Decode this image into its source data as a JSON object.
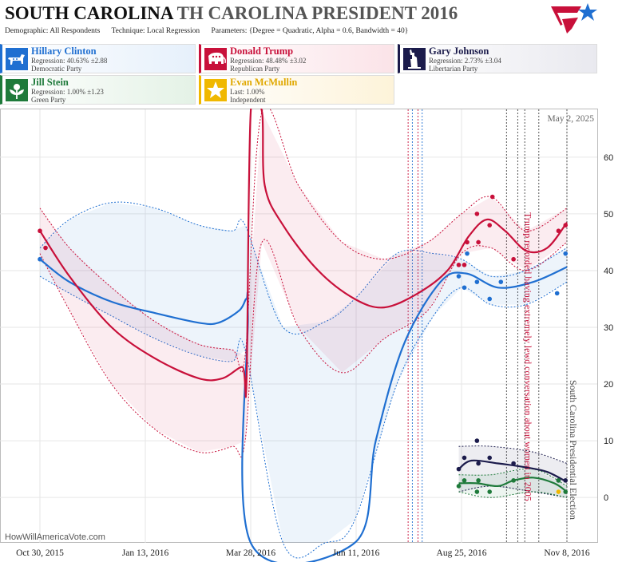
{
  "header": {
    "title_state": "SOUTH CAROLINA",
    "title_rest": "TH CAROLINA PRESIDENT 2016",
    "demographic": "Demographic: All Respondents",
    "technique": "Technique: Local Regression",
    "parameters": "Parameters: {Degree = Quadratic, Alpha = 0.6, Bandwidth = 40}"
  },
  "candidates": [
    {
      "key": "clinton",
      "name": "Hillary Clinton",
      "line2": "Regression: 40.63% ±2.88",
      "line3": "Democratic Party",
      "color": "#1f6fd1",
      "icon": "donkey-icon"
    },
    {
      "key": "trump",
      "name": "Donald Trump",
      "line2": "Regression: 48.48% ±3.02",
      "line3": "Republican Party",
      "color": "#c8103a",
      "icon": "elephant-icon"
    },
    {
      "key": "johnson",
      "name": "Gary Johnson",
      "line2": "Regression: 2.73% ±3.04",
      "line3": "Libertarian Party",
      "color": "#1b1b4b",
      "icon": "liberty-statue-icon"
    },
    {
      "key": "stein",
      "name": "Jill Stein",
      "line2": "Regression: 1.00% ±1.23",
      "line3": "Green Party",
      "color": "#1e7a3a",
      "icon": "leaf-flower-icon"
    },
    {
      "key": "mcmullin",
      "name": "Evan McMullin",
      "line2": "Last: 1.00%",
      "line3": "Independent",
      "color": "#f0b800",
      "icon": "star-icon"
    }
  ],
  "chart_data": {
    "type": "line",
    "date_label": "May 2, 2025",
    "watermark": "HowWillAmericaVote.com",
    "x_ticks": [
      {
        "date": "2015-10-30",
        "label": "Oct 30, 2015"
      },
      {
        "date": "2016-01-13",
        "label": "Jan 13, 2016"
      },
      {
        "date": "2016-03-28",
        "label": "Mar 28, 2016"
      },
      {
        "date": "2016-06-11",
        "label": "Jun 11, 2016"
      },
      {
        "date": "2016-08-25",
        "label": "Aug 25, 2016"
      },
      {
        "date": "2016-11-08",
        "label": "Nov 8, 2016"
      }
    ],
    "ylim": [
      -8,
      68
    ],
    "y_ticks": [
      0,
      10,
      20,
      30,
      40,
      50,
      60
    ],
    "grid": true,
    "annotations": [
      {
        "date": "2016-10-07",
        "text": "Trump recorded having extremely lewd conversation about women in 2005",
        "color": "#c8103a"
      },
      {
        "date": "2016-11-08",
        "text": "South Carolina Presidential Election",
        "color": "#444444"
      }
    ],
    "event_lines": [
      {
        "date": "2016-07-18",
        "color": "#c8103a"
      },
      {
        "date": "2016-07-21",
        "color": "#1f6fd1"
      },
      {
        "date": "2016-07-25",
        "color": "#c8103a"
      },
      {
        "date": "2016-07-28",
        "color": "#1f6fd1"
      },
      {
        "date": "2016-09-26",
        "color": "#444444"
      },
      {
        "date": "2016-10-04",
        "color": "#444444"
      },
      {
        "date": "2016-10-09",
        "color": "#444444"
      },
      {
        "date": "2016-10-19",
        "color": "#444444"
      },
      {
        "date": "2016-11-08",
        "color": "#444444"
      }
    ],
    "series": [
      {
        "name": "Hillary Clinton",
        "color": "#1f6fd1",
        "band": [
          {
            "x": "2015-10-30",
            "lo": 39,
            "hi": 44
          },
          {
            "x": "2015-11-20",
            "lo": 36,
            "hi": 49
          },
          {
            "x": "2015-12-20",
            "lo": 32,
            "hi": 52
          },
          {
            "x": "2016-01-20",
            "lo": 28,
            "hi": 51
          },
          {
            "x": "2016-02-20",
            "lo": 25,
            "hi": 48
          },
          {
            "x": "2016-03-15",
            "lo": 24,
            "hi": 47
          },
          {
            "x": "2016-03-24",
            "lo": 26,
            "hi": 48
          },
          {
            "x": "2016-04-20",
            "lo": -8,
            "hi": 30
          },
          {
            "x": "2016-05-20",
            "lo": -8,
            "hi": 31
          },
          {
            "x": "2016-06-10",
            "lo": -4,
            "hi": 35
          },
          {
            "x": "2016-07-10",
            "lo": 20,
            "hi": 43
          },
          {
            "x": "2016-08-05",
            "lo": 32,
            "hi": 43
          },
          {
            "x": "2016-08-25",
            "lo": 37,
            "hi": 42
          },
          {
            "x": "2016-09-15",
            "lo": 34,
            "hi": 39
          },
          {
            "x": "2016-10-10",
            "lo": 34,
            "hi": 40
          },
          {
            "x": "2016-11-08",
            "lo": 38,
            "hi": 44
          }
        ],
        "curve": [
          {
            "x": "2015-10-30",
            "y": 42
          },
          {
            "x": "2015-11-20",
            "y": 38
          },
          {
            "x": "2015-12-20",
            "y": 34.5
          },
          {
            "x": "2016-01-20",
            "y": 32.5
          },
          {
            "x": "2016-02-20",
            "y": 30.8
          },
          {
            "x": "2016-03-05",
            "y": 30.8
          },
          {
            "x": "2016-03-20",
            "y": 33
          },
          {
            "x": "2016-03-25",
            "y": 35
          },
          {
            "x": "2016-03-26",
            "y": 32
          },
          {
            "x": "2016-03-28",
            "y": -8
          },
          {
            "x": "2016-06-10",
            "y": -8
          },
          {
            "x": "2016-06-25",
            "y": 10
          },
          {
            "x": "2016-07-15",
            "y": 27
          },
          {
            "x": "2016-08-10",
            "y": 38
          },
          {
            "x": "2016-08-28",
            "y": 39.5
          },
          {
            "x": "2016-09-20",
            "y": 37
          },
          {
            "x": "2016-10-15",
            "y": 38
          },
          {
            "x": "2016-11-08",
            "y": 40.63
          }
        ],
        "points": [
          {
            "x": "2015-10-30",
            "y": 42
          },
          {
            "x": "2016-08-23",
            "y": 39
          },
          {
            "x": "2016-08-27",
            "y": 37
          },
          {
            "x": "2016-08-29",
            "y": 43
          },
          {
            "x": "2016-09-05",
            "y": 38
          },
          {
            "x": "2016-09-14",
            "y": 35
          },
          {
            "x": "2016-09-22",
            "y": 38
          },
          {
            "x": "2016-11-01",
            "y": 36
          },
          {
            "x": "2016-11-07",
            "y": 43
          }
        ]
      },
      {
        "name": "Donald Trump",
        "color": "#c8103a",
        "band": [
          {
            "x": "2015-10-30",
            "lo": 43,
            "hi": 51
          },
          {
            "x": "2015-11-20",
            "lo": 33,
            "hi": 44
          },
          {
            "x": "2015-12-20",
            "lo": 20,
            "hi": 37
          },
          {
            "x": "2016-01-20",
            "lo": 12,
            "hi": 31
          },
          {
            "x": "2016-02-20",
            "lo": 8,
            "hi": 27
          },
          {
            "x": "2016-03-15",
            "lo": 9,
            "hi": 26
          },
          {
            "x": "2016-03-24",
            "lo": 10,
            "hi": 25
          },
          {
            "x": "2016-04-05",
            "lo": 45,
            "hi": 68
          },
          {
            "x": "2016-05-01",
            "lo": 30,
            "hi": 55
          },
          {
            "x": "2016-06-01",
            "lo": 22,
            "hi": 45
          },
          {
            "x": "2016-07-01",
            "lo": 28,
            "hi": 42
          },
          {
            "x": "2016-08-01",
            "lo": 33,
            "hi": 45
          },
          {
            "x": "2016-08-25",
            "lo": 43,
            "hi": 50
          },
          {
            "x": "2016-09-15",
            "lo": 44,
            "hi": 53
          },
          {
            "x": "2016-10-10",
            "lo": 40,
            "hi": 47
          },
          {
            "x": "2016-11-08",
            "lo": 45,
            "hi": 51
          }
        ],
        "curve": [
          {
            "x": "2015-10-30",
            "y": 47
          },
          {
            "x": "2015-11-20",
            "y": 39
          },
          {
            "x": "2015-12-20",
            "y": 30
          },
          {
            "x": "2016-01-20",
            "y": 24.5
          },
          {
            "x": "2016-02-20",
            "y": 21
          },
          {
            "x": "2016-03-08",
            "y": 21
          },
          {
            "x": "2016-03-22",
            "y": 23
          },
          {
            "x": "2016-03-25",
            "y": 20.5
          },
          {
            "x": "2016-03-28",
            "y": 68
          },
          {
            "x": "2016-04-05",
            "y": 68
          },
          {
            "x": "2016-04-07",
            "y": 55
          },
          {
            "x": "2016-04-20",
            "y": 48
          },
          {
            "x": "2016-05-15",
            "y": 40
          },
          {
            "x": "2016-06-10",
            "y": 35
          },
          {
            "x": "2016-07-01",
            "y": 33.5
          },
          {
            "x": "2016-07-25",
            "y": 36
          },
          {
            "x": "2016-08-15",
            "y": 40
          },
          {
            "x": "2016-08-30",
            "y": 46
          },
          {
            "x": "2016-09-12",
            "y": 49
          },
          {
            "x": "2016-09-25",
            "y": 47
          },
          {
            "x": "2016-10-10",
            "y": 43.5
          },
          {
            "x": "2016-10-25",
            "y": 44
          },
          {
            "x": "2016-11-08",
            "y": 48.48
          }
        ],
        "points": [
          {
            "x": "2015-10-30",
            "y": 47
          },
          {
            "x": "2015-11-03",
            "y": 44
          },
          {
            "x": "2016-08-23",
            "y": 41
          },
          {
            "x": "2016-08-27",
            "y": 41
          },
          {
            "x": "2016-08-29",
            "y": 45
          },
          {
            "x": "2016-09-05",
            "y": 50
          },
          {
            "x": "2016-09-06",
            "y": 45
          },
          {
            "x": "2016-09-14",
            "y": 48
          },
          {
            "x": "2016-09-16",
            "y": 53
          },
          {
            "x": "2016-10-01",
            "y": 42
          },
          {
            "x": "2016-11-02",
            "y": 47
          },
          {
            "x": "2016-11-07",
            "y": 48
          }
        ]
      },
      {
        "name": "Gary Johnson",
        "color": "#1b1b4b",
        "band": [
          {
            "x": "2016-08-23",
            "lo": 1,
            "hi": 9
          },
          {
            "x": "2016-09-15",
            "lo": 2,
            "hi": 9
          },
          {
            "x": "2016-10-15",
            "lo": 1,
            "hi": 8
          },
          {
            "x": "2016-11-08",
            "lo": 0,
            "hi": 6
          }
        ],
        "curve": [
          {
            "x": "2016-08-23",
            "y": 5
          },
          {
            "x": "2016-09-01",
            "y": 6.5
          },
          {
            "x": "2016-09-20",
            "y": 6
          },
          {
            "x": "2016-10-10",
            "y": 5.3
          },
          {
            "x": "2016-10-25",
            "y": 4.5
          },
          {
            "x": "2016-11-08",
            "y": 2.73
          }
        ],
        "points": [
          {
            "x": "2016-08-23",
            "y": 5
          },
          {
            "x": "2016-08-27",
            "y": 7
          },
          {
            "x": "2016-09-05",
            "y": 10
          },
          {
            "x": "2016-09-06",
            "y": 6
          },
          {
            "x": "2016-09-14",
            "y": 7
          },
          {
            "x": "2016-10-01",
            "y": 6
          },
          {
            "x": "2016-11-02",
            "y": 3
          },
          {
            "x": "2016-11-07",
            "y": 3
          }
        ]
      },
      {
        "name": "Jill Stein",
        "color": "#1e7a3a",
        "band": [
          {
            "x": "2016-08-23",
            "lo": 1,
            "hi": 4
          },
          {
            "x": "2016-09-15",
            "lo": 0,
            "hi": 4
          },
          {
            "x": "2016-10-15",
            "lo": 1,
            "hi": 5
          },
          {
            "x": "2016-11-08",
            "lo": 0,
            "hi": 2
          }
        ],
        "curve": [
          {
            "x": "2016-08-23",
            "y": 2.5
          },
          {
            "x": "2016-09-05",
            "y": 2.5
          },
          {
            "x": "2016-09-20",
            "y": 2
          },
          {
            "x": "2016-10-01",
            "y": 3
          },
          {
            "x": "2016-10-15",
            "y": 3.5
          },
          {
            "x": "2016-10-30",
            "y": 2.5
          },
          {
            "x": "2016-11-08",
            "y": 1.0
          }
        ],
        "points": [
          {
            "x": "2016-08-23",
            "y": 2
          },
          {
            "x": "2016-08-27",
            "y": 3
          },
          {
            "x": "2016-09-05",
            "y": 1
          },
          {
            "x": "2016-09-06",
            "y": 3
          },
          {
            "x": "2016-09-14",
            "y": 1
          },
          {
            "x": "2016-10-01",
            "y": 3
          },
          {
            "x": "2016-11-02",
            "y": 3
          },
          {
            "x": "2016-11-07",
            "y": 1
          }
        ]
      },
      {
        "name": "Evan McMullin",
        "color": "#f0b800",
        "points": [
          {
            "x": "2016-11-02",
            "y": 1
          }
        ]
      }
    ]
  }
}
